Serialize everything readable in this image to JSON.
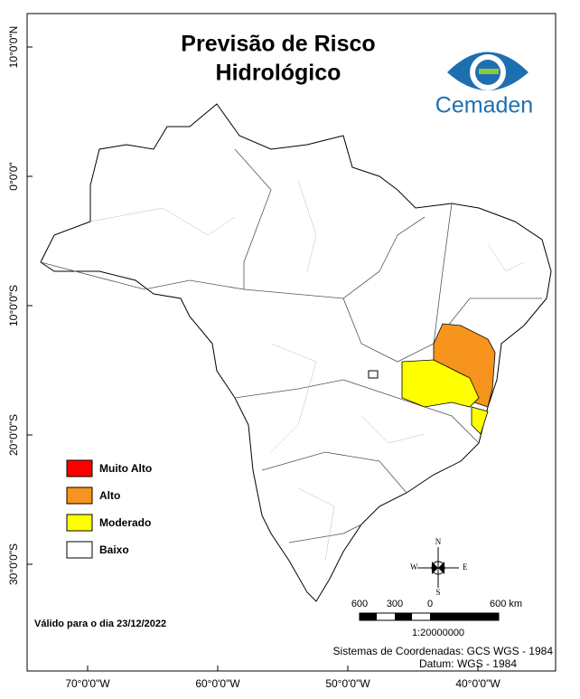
{
  "title_lines": [
    "Previsão de Risco",
    "Hidrológico"
  ],
  "logo": "Cemaden",
  "legend": [
    {
      "label": "Muito Alto",
      "color": "#ff0000"
    },
    {
      "label": "Alto",
      "color": "#f7941d"
    },
    {
      "label": "Moderado",
      "color": "#ffff00"
    },
    {
      "label": "Baixo",
      "color": "#ffffff"
    }
  ],
  "validity": "Válido para o dia 23/12/2022",
  "lat_labels": [
    "10°0'0\"N",
    "0°0'0\"",
    "10°0'0\"S",
    "20°0'0\"S",
    "30°0'0\"S"
  ],
  "lon_labels": [
    "70°0'0\"W",
    "60°0'0\"W",
    "50°0'0\"W",
    "40°0'0\"W"
  ],
  "compass": {
    "north": "N",
    "south": "S",
    "east": "E",
    "west": "W"
  },
  "scale_bar": {
    "labels": [
      "600",
      "300",
      "0",
      "600 km"
    ],
    "ratio": "1:20000000"
  },
  "coordinate_system": [
    "Sistemas de Coordenadas: GCS WGS - 1984",
    "Datum: WGS - 1984"
  ]
}
